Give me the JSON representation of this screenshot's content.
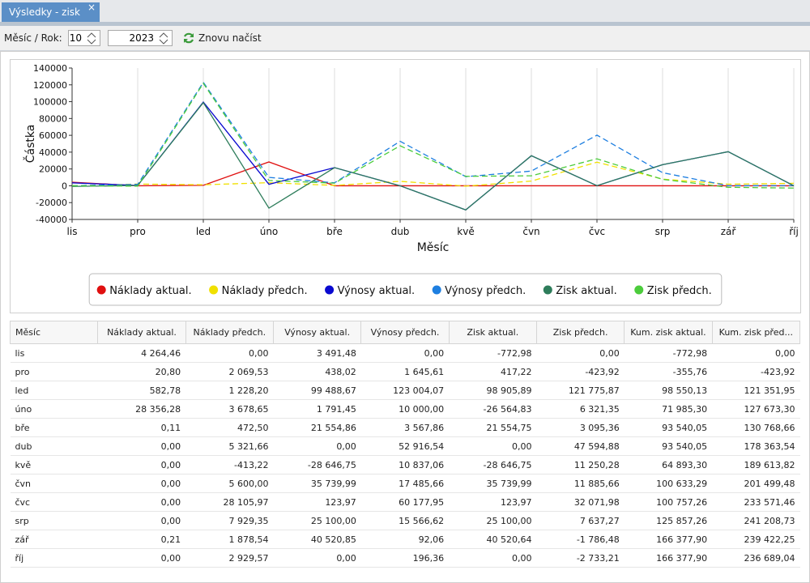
{
  "tab": {
    "title": "Výsledky - zisk"
  },
  "toolbar": {
    "label": "Měsíc / Rok:",
    "month": 10,
    "year": 2023,
    "reload": "Znovu načíst"
  },
  "chart_data": {
    "type": "line",
    "ylabel": "Částka",
    "xlabel": "Měsíc",
    "categories": [
      "lis",
      "pro",
      "led",
      "úno",
      "bře",
      "dub",
      "kvě",
      "čvn",
      "čvc",
      "srp",
      "zář",
      "říj"
    ],
    "ylim": [
      -40000,
      140000
    ],
    "yticks": [
      -40000,
      -20000,
      0,
      20000,
      40000,
      60000,
      80000,
      100000,
      120000,
      140000
    ],
    "grid": true,
    "series": [
      {
        "name": "Náklady aktual.",
        "color": "#e01010",
        "dashed": false,
        "values": [
          4264.46,
          20.8,
          582.78,
          28356.28,
          0.11,
          0,
          0,
          0,
          0,
          0,
          0.21,
          0
        ]
      },
      {
        "name": "Náklady předch.",
        "color": "#f0e000",
        "dashed": true,
        "values": [
          0,
          2069.53,
          1228.2,
          3678.65,
          472.5,
          5321.66,
          -413.22,
          5600.0,
          28105.97,
          7929.35,
          1878.54,
          2929.57
        ]
      },
      {
        "name": "Výnosy aktual.",
        "color": "#0a0ad0",
        "dashed": false,
        "values": [
          3491.48,
          438.02,
          99488.67,
          1791.45,
          21554.86,
          0,
          -28646.75,
          35739.99,
          123.97,
          25100.0,
          40520.85,
          0
        ]
      },
      {
        "name": "Výnosy předch.",
        "color": "#1e7fe0",
        "dashed": true,
        "values": [
          0,
          1645.61,
          123004.07,
          10000.0,
          3567.86,
          52916.54,
          10837.06,
          17485.66,
          60177.95,
          15566.62,
          92.06,
          196.36
        ]
      },
      {
        "name": "Zisk aktual.",
        "color": "#2e7d5b",
        "dashed": false,
        "values": [
          -772.98,
          417.22,
          98905.89,
          -26564.83,
          21554.75,
          0,
          -28646.75,
          35739.99,
          123.97,
          25100.0,
          40520.64,
          0
        ]
      },
      {
        "name": "Zisk předch.",
        "color": "#4ccc3c",
        "dashed": true,
        "values": [
          0,
          -423.92,
          121775.87,
          6321.35,
          3095.36,
          47594.88,
          11250.28,
          11885.66,
          32071.98,
          7637.27,
          -1786.48,
          -2733.21
        ]
      }
    ]
  },
  "table": {
    "columns": [
      "Měsíc",
      "Náklady aktual.",
      "Náklady předch.",
      "Výnosy aktual.",
      "Výnosy předch.",
      "Zisk aktual.",
      "Zisk předch.",
      "Kum. zisk aktual.",
      "Kum. zisk před..."
    ],
    "rows": [
      [
        "lis",
        "4 264,46",
        "0,00",
        "3 491,48",
        "0,00",
        "-772,98",
        "0,00",
        "-772,98",
        "0,00"
      ],
      [
        "pro",
        "20,80",
        "2 069,53",
        "438,02",
        "1 645,61",
        "417,22",
        "-423,92",
        "-355,76",
        "-423,92"
      ],
      [
        "led",
        "582,78",
        "1 228,20",
        "99 488,67",
        "123 004,07",
        "98 905,89",
        "121 775,87",
        "98 550,13",
        "121 351,95"
      ],
      [
        "úno",
        "28 356,28",
        "3 678,65",
        "1 791,45",
        "10 000,00",
        "-26 564,83",
        "6 321,35",
        "71 985,30",
        "127 673,30"
      ],
      [
        "bře",
        "0,11",
        "472,50",
        "21 554,86",
        "3 567,86",
        "21 554,75",
        "3 095,36",
        "93 540,05",
        "130 768,66"
      ],
      [
        "dub",
        "0,00",
        "5 321,66",
        "0,00",
        "52 916,54",
        "0,00",
        "47 594,88",
        "93 540,05",
        "178 363,54"
      ],
      [
        "kvě",
        "0,00",
        "-413,22",
        "-28 646,75",
        "10 837,06",
        "-28 646,75",
        "11 250,28",
        "64 893,30",
        "189 613,82"
      ],
      [
        "čvn",
        "0,00",
        "5 600,00",
        "35 739,99",
        "17 485,66",
        "35 739,99",
        "11 885,66",
        "100 633,29",
        "201 499,48"
      ],
      [
        "čvc",
        "0,00",
        "28 105,97",
        "123,97",
        "60 177,95",
        "123,97",
        "32 071,98",
        "100 757,26",
        "233 571,46"
      ],
      [
        "srp",
        "0,00",
        "7 929,35",
        "25 100,00",
        "15 566,62",
        "25 100,00",
        "7 637,27",
        "125 857,26",
        "241 208,73"
      ],
      [
        "zář",
        "0,21",
        "1 878,54",
        "40 520,85",
        "92,06",
        "40 520,64",
        "-1 786,48",
        "166 377,90",
        "239 422,25"
      ],
      [
        "říj",
        "0,00",
        "2 929,57",
        "0,00",
        "196,36",
        "0,00",
        "-2 733,21",
        "166 377,90",
        "236 689,04"
      ]
    ]
  }
}
